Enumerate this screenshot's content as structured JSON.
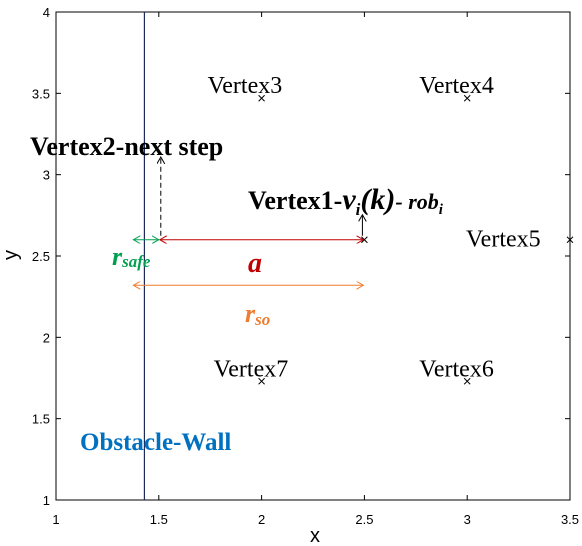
{
  "chart_data": {
    "type": "scatter",
    "title": "",
    "xlabel": "x",
    "ylabel": "y",
    "xlim": [
      1,
      3.5
    ],
    "ylim": [
      1,
      4
    ],
    "xticks": [
      "1",
      "1.5",
      "2",
      "2.5",
      "3",
      "3.5"
    ],
    "yticks": [
      "1",
      "1.5",
      "2",
      "2.5",
      "3",
      "3.5",
      "4"
    ],
    "xtick_values": [
      1,
      1.5,
      2,
      2.5,
      3,
      3.5
    ],
    "ytick_values": [
      1,
      1.5,
      2,
      2.5,
      3,
      3.5,
      4
    ],
    "grid": false,
    "vertices": [
      {
        "label": "Vertex3",
        "x": 2.0,
        "y": 3.47
      },
      {
        "label": "Vertex4",
        "x": 3.0,
        "y": 3.47
      },
      {
        "label": "Vertex5",
        "x": 3.5,
        "y": 2.6
      },
      {
        "label": "Vertex6",
        "x": 3.0,
        "y": 1.73
      },
      {
        "label": "Vertex7",
        "x": 2.0,
        "y": 1.73
      }
    ],
    "vertex1": {
      "x": 2.5,
      "y": 2.6,
      "label_main": "Vertex1-",
      "label_v": "v",
      "label_i": "i",
      "label_k": "(k)",
      "label_rob": "- rob",
      "label_rob_i": "i"
    },
    "vertex2": {
      "x": 1.5,
      "y": 2.6,
      "label": "Vertex2-next step"
    },
    "wall": {
      "x": 1.43,
      "label": "Obstacle-Wall",
      "color": "#0070c0"
    },
    "distances": {
      "a": {
        "label": "a",
        "x_start": 1.5,
        "x_end": 2.5,
        "y": 2.6,
        "color": "#c00000"
      },
      "r_safe": {
        "label": "r",
        "sub": "safe",
        "x_start": 1.43,
        "x_end": 1.5,
        "y": 2.6,
        "color": "#00a050"
      },
      "r_so": {
        "label": "r",
        "sub": "so",
        "x_start": 1.43,
        "x_end": 2.5,
        "y": 2.32,
        "color": "#ed7d31"
      }
    }
  }
}
